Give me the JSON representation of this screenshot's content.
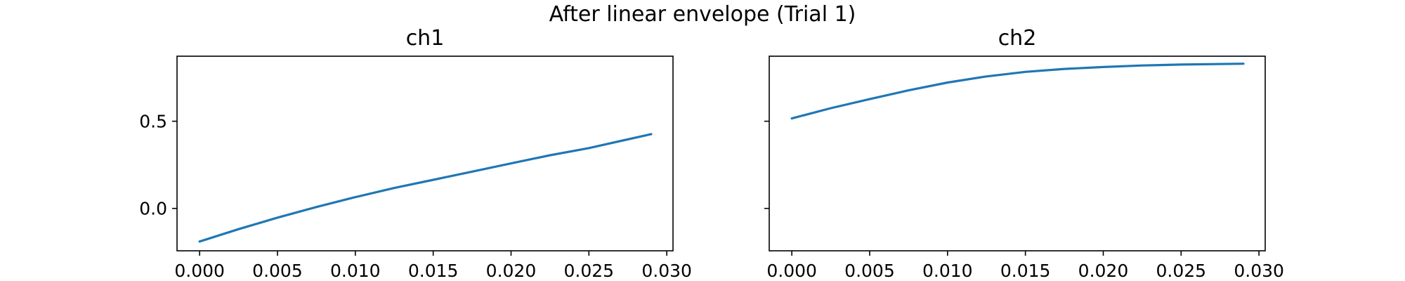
{
  "suptitle": "After linear envelope (Trial 1)",
  "chart_data": [
    {
      "type": "line",
      "title": "ch1",
      "xlabel": "",
      "ylabel": "",
      "xlim": [
        -0.00145,
        0.0304
      ],
      "ylim": [
        -0.243,
        0.873
      ],
      "xticks": [
        "0.000",
        "0.005",
        "0.010",
        "0.015",
        "0.020",
        "0.025",
        "0.030"
      ],
      "yticks": [
        "0.0",
        "0.5"
      ],
      "grid": false,
      "series": [
        {
          "color": "#1f77b4",
          "x": [
            0.0,
            0.0025,
            0.005,
            0.0075,
            0.01,
            0.0125,
            0.015,
            0.0175,
            0.02,
            0.0225,
            0.025,
            0.029
          ],
          "y": [
            -0.19,
            -0.119,
            -0.053,
            0.008,
            0.065,
            0.117,
            0.164,
            0.211,
            0.258,
            0.305,
            0.346,
            0.426
          ]
        }
      ]
    },
    {
      "type": "line",
      "title": "ch2",
      "xlabel": "",
      "ylabel": "",
      "xlim": [
        -0.00145,
        0.0304
      ],
      "ylim": [
        -0.243,
        0.873
      ],
      "xticks": [
        "0.000",
        "0.005",
        "0.010",
        "0.015",
        "0.020",
        "0.025",
        "0.030"
      ],
      "yticks": [],
      "grid": false,
      "series": [
        {
          "color": "#1f77b4",
          "x": [
            0.0,
            0.0025,
            0.005,
            0.0075,
            0.01,
            0.0125,
            0.015,
            0.0175,
            0.02,
            0.0225,
            0.025,
            0.029
          ],
          "y": [
            0.516,
            0.575,
            0.627,
            0.677,
            0.722,
            0.757,
            0.783,
            0.8,
            0.811,
            0.82,
            0.825,
            0.83
          ]
        }
      ]
    }
  ]
}
